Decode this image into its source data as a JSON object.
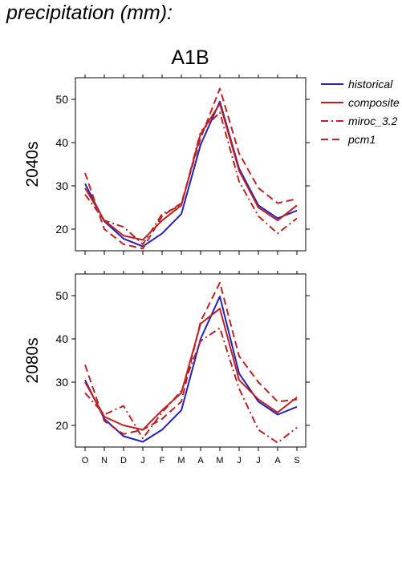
{
  "page": {
    "title": "precipitation (mm):"
  },
  "chart_data": {
    "type": "line",
    "scenario": "A1B",
    "categories": [
      "O",
      "N",
      "D",
      "J",
      "F",
      "M",
      "A",
      "M",
      "J",
      "J",
      "A",
      "S"
    ],
    "ylim": [
      15,
      55
    ],
    "yticks": [
      20,
      30,
      40,
      50
    ],
    "legend": {
      "placement": "right",
      "entries": [
        {
          "name": "historical",
          "color": "#2222bb",
          "dash": "solid"
        },
        {
          "name": "composite",
          "color": "#bb2222",
          "dash": "solid"
        },
        {
          "name": "miroc_3.2",
          "color": "#bb2222",
          "dash": "dashdot"
        },
        {
          "name": "pcm1",
          "color": "#bb2222",
          "dash": "dashed"
        }
      ]
    },
    "panels": [
      {
        "label": "2040s",
        "series": [
          {
            "name": "historical",
            "values": [
              30.5,
              21.8,
              17.8,
              16.0,
              19.0,
              23.5,
              39.5,
              49.5,
              34.0,
              25.5,
              22.5,
              24.3
            ]
          },
          {
            "name": "composite",
            "values": [
              29.5,
              22.0,
              18.5,
              17.5,
              22.0,
              25.5,
              42.0,
              49.0,
              33.5,
              25.0,
              22.0,
              25.5
            ]
          },
          {
            "name": "miroc_3.2",
            "values": [
              28.0,
              22.0,
              20.5,
              16.5,
              23.5,
              25.5,
              42.5,
              47.0,
              31.0,
              23.0,
              19.0,
              22.5
            ]
          },
          {
            "name": "pcm1",
            "values": [
              33.0,
              20.0,
              16.5,
              15.5,
              23.0,
              26.0,
              41.0,
              52.5,
              37.5,
              29.5,
              26.0,
              27.0
            ]
          }
        ]
      },
      {
        "label": "2080s",
        "series": [
          {
            "name": "historical",
            "values": [
              30.5,
              21.5,
              17.5,
              16.2,
              19.0,
              23.5,
              40.0,
              49.8,
              32.0,
              25.5,
              22.5,
              24.3
            ]
          },
          {
            "name": "composite",
            "values": [
              30.0,
              22.0,
              20.0,
              19.0,
              23.5,
              27.5,
              43.5,
              47.0,
              30.5,
              26.0,
              23.0,
              26.5
            ]
          },
          {
            "name": "miroc_3.2",
            "values": [
              27.5,
              22.5,
              24.5,
              17.0,
              23.0,
              28.0,
              39.5,
              42.5,
              28.5,
              19.0,
              16.0,
              19.5
            ]
          },
          {
            "name": "pcm1",
            "values": [
              34.0,
              21.0,
              18.0,
              19.0,
              21.5,
              25.5,
              44.0,
              53.0,
              36.0,
              30.0,
              25.5,
              26.0
            ]
          }
        ]
      }
    ]
  }
}
